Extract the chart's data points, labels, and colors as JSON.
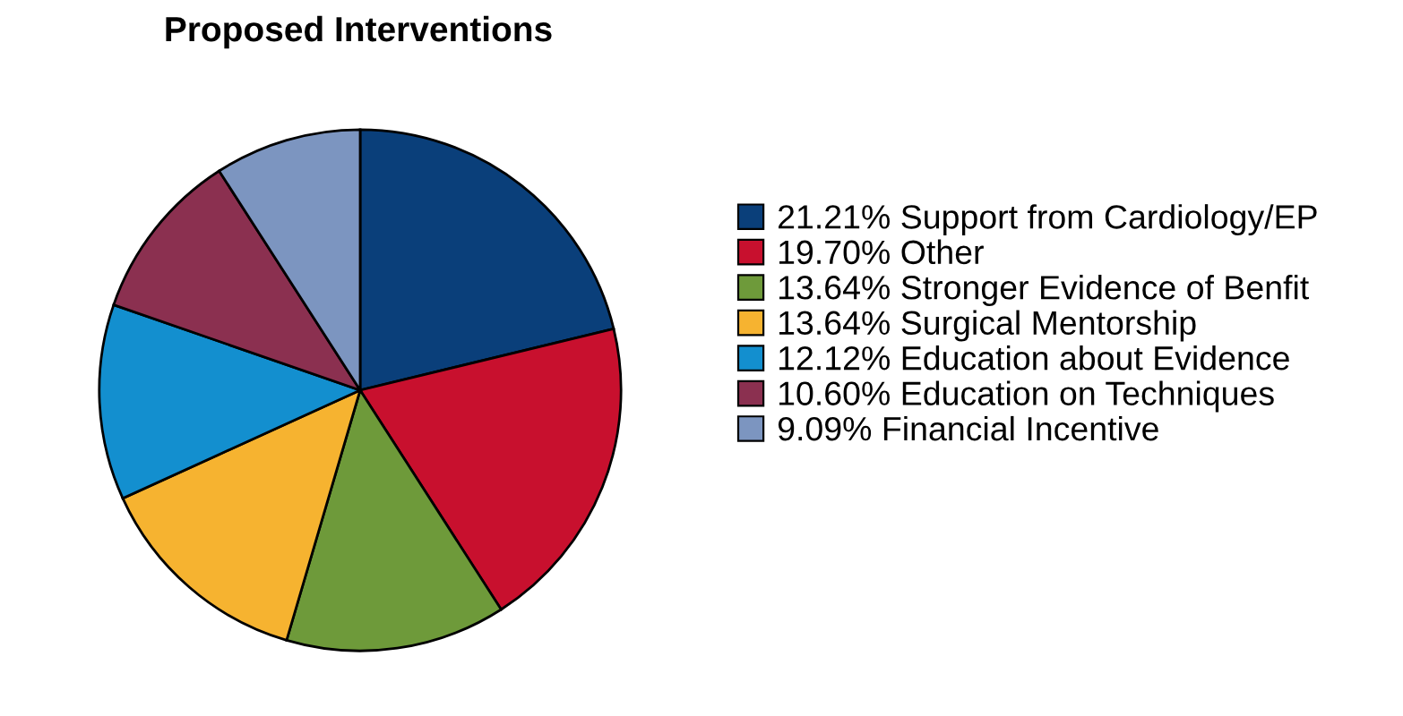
{
  "chart_data": {
    "type": "pie",
    "title": "Proposed Interventions",
    "categories": [
      "Support from Cardiology/EP",
      "Other",
      "Stronger Evidence of Benfit",
      "Surgical Mentorship",
      "Education about Evidence",
      "Education on Techniques",
      "Financial Incentive"
    ],
    "values": [
      21.21,
      19.7,
      13.64,
      13.64,
      12.12,
      10.6,
      9.09
    ],
    "value_labels": [
      "21.21%",
      "19.70%",
      "13.64%",
      "13.64%",
      "12.12%",
      "10.60%",
      "9.09%"
    ],
    "colors": [
      "#0a3f7a",
      "#c8102e",
      "#6e9a3a",
      "#f6b330",
      "#138fcf",
      "#8b3050",
      "#7c95c0"
    ],
    "legend": "right"
  }
}
